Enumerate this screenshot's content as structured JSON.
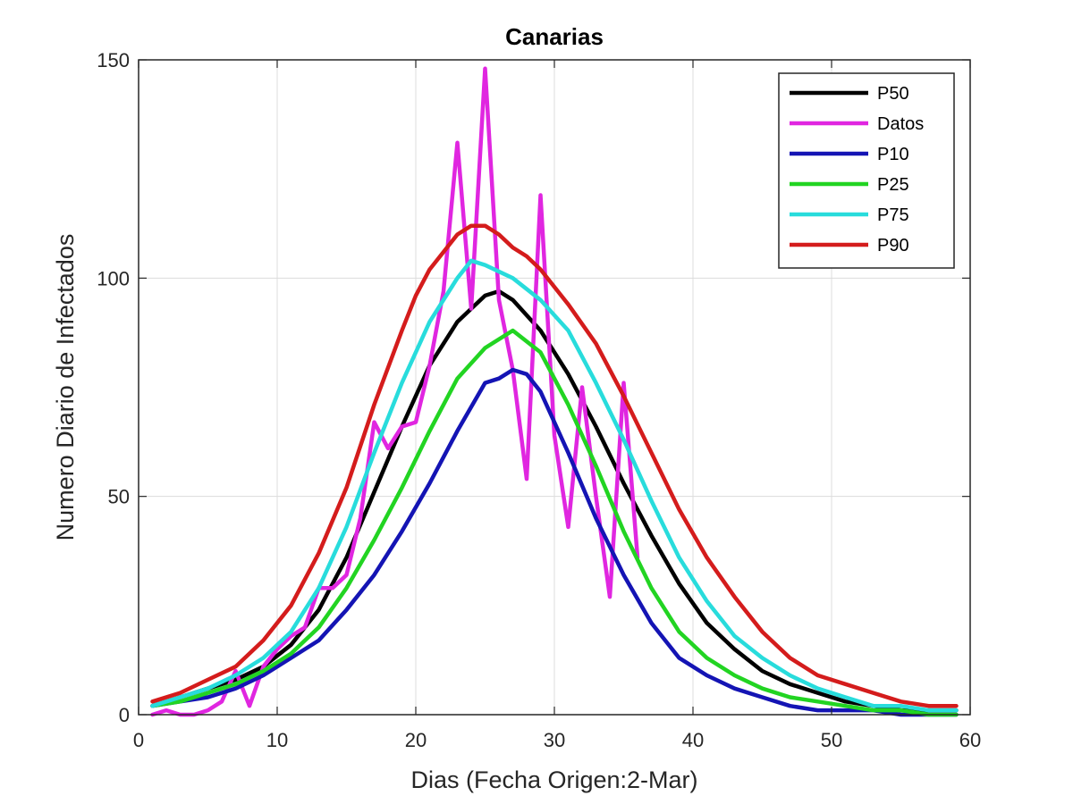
{
  "chart_data": {
    "type": "line",
    "title": "Canarias",
    "xlabel": "Dias (Fecha Origen:2-Mar)",
    "ylabel": "Numero Diario de Infectados",
    "xlim": [
      0,
      60
    ],
    "ylim": [
      0,
      150
    ],
    "xticks": [
      0,
      10,
      20,
      30,
      40,
      50,
      60
    ],
    "yticks": [
      0,
      50,
      100,
      150
    ],
    "xtick_labels": [
      "0",
      "10",
      "20",
      "30",
      "40",
      "50",
      "60"
    ],
    "ytick_labels": [
      "0",
      "50",
      "100",
      "150"
    ],
    "grid": true,
    "legend_position": "top-right",
    "series": [
      {
        "name": "P50",
        "color": "#000000",
        "x": [
          1,
          3,
          5,
          7,
          9,
          11,
          13,
          15,
          17,
          19,
          21,
          23,
          25,
          26,
          27,
          29,
          31,
          33,
          35,
          37,
          39,
          41,
          43,
          45,
          47,
          49,
          51,
          53,
          55,
          57,
          59
        ],
        "y": [
          2,
          4,
          6,
          8,
          11,
          16,
          24,
          36,
          51,
          66,
          80,
          90,
          96,
          97,
          95,
          88,
          78,
          66,
          53,
          41,
          30,
          21,
          15,
          10,
          7,
          5,
          3,
          2,
          1,
          1,
          1
        ]
      },
      {
        "name": "Datos",
        "color": "#e026e0",
        "x": [
          1,
          2,
          3,
          4,
          5,
          6,
          7,
          8,
          9,
          10,
          11,
          12,
          13,
          14,
          15,
          16,
          17,
          18,
          19,
          20,
          21,
          22,
          23,
          24,
          25,
          26,
          27,
          28,
          29,
          30,
          31,
          32,
          33,
          34,
          35,
          36
        ],
        "y": [
          0,
          1,
          0,
          0,
          1,
          3,
          10,
          2,
          11,
          15,
          18,
          20,
          29,
          29,
          32,
          45,
          67,
          61,
          66,
          67,
          80,
          97,
          131,
          93,
          148,
          95,
          79,
          54,
          119,
          64,
          43,
          75,
          50,
          27,
          76,
          36
        ]
      },
      {
        "name": "P10",
        "color": "#1414b4",
        "x": [
          1,
          3,
          5,
          7,
          9,
          11,
          13,
          15,
          17,
          19,
          21,
          23,
          25,
          26,
          27,
          28,
          29,
          31,
          33,
          35,
          37,
          39,
          41,
          43,
          45,
          47,
          49,
          51,
          53,
          55,
          57,
          59
        ],
        "y": [
          2,
          3,
          4,
          6,
          9,
          13,
          17,
          24,
          32,
          42,
          53,
          65,
          76,
          77,
          79,
          78,
          74,
          60,
          45,
          32,
          21,
          13,
          9,
          6,
          4,
          2,
          1,
          1,
          1,
          0,
          0,
          0
        ]
      },
      {
        "name": "P25",
        "color": "#22d422",
        "x": [
          1,
          3,
          5,
          7,
          9,
          11,
          13,
          15,
          17,
          19,
          21,
          23,
          25,
          27,
          29,
          31,
          33,
          35,
          37,
          39,
          41,
          43,
          45,
          47,
          49,
          51,
          53,
          55,
          57,
          59
        ],
        "y": [
          2,
          3,
          5,
          7,
          10,
          14,
          20,
          29,
          40,
          52,
          65,
          77,
          84,
          88,
          83,
          71,
          57,
          42,
          29,
          19,
          13,
          9,
          6,
          4,
          3,
          2,
          1,
          1,
          0,
          0
        ]
      },
      {
        "name": "P75",
        "color": "#28dcdc",
        "x": [
          1,
          3,
          5,
          7,
          9,
          11,
          13,
          15,
          17,
          19,
          21,
          23,
          24,
          25,
          27,
          29,
          31,
          33,
          35,
          37,
          39,
          41,
          43,
          45,
          47,
          49,
          51,
          53,
          55,
          57,
          59
        ],
        "y": [
          2,
          4,
          6,
          9,
          13,
          19,
          29,
          43,
          60,
          76,
          90,
          100,
          104,
          103,
          100,
          95,
          88,
          76,
          63,
          49,
          36,
          26,
          18,
          13,
          9,
          6,
          4,
          2,
          2,
          1,
          1
        ]
      },
      {
        "name": "P90",
        "color": "#d41c1c",
        "x": [
          1,
          3,
          5,
          7,
          9,
          11,
          13,
          15,
          17,
          19,
          20,
          21,
          23,
          24,
          25,
          26,
          27,
          28,
          29,
          31,
          33,
          35,
          37,
          39,
          41,
          43,
          45,
          47,
          49,
          51,
          53,
          55,
          57,
          59
        ],
        "y": [
          3,
          5,
          8,
          11,
          17,
          25,
          37,
          52,
          71,
          88,
          96,
          102,
          110,
          112,
          112,
          110,
          107,
          105,
          102,
          94,
          85,
          73,
          60,
          47,
          36,
          27,
          19,
          13,
          9,
          7,
          5,
          3,
          2,
          2
        ]
      }
    ]
  }
}
